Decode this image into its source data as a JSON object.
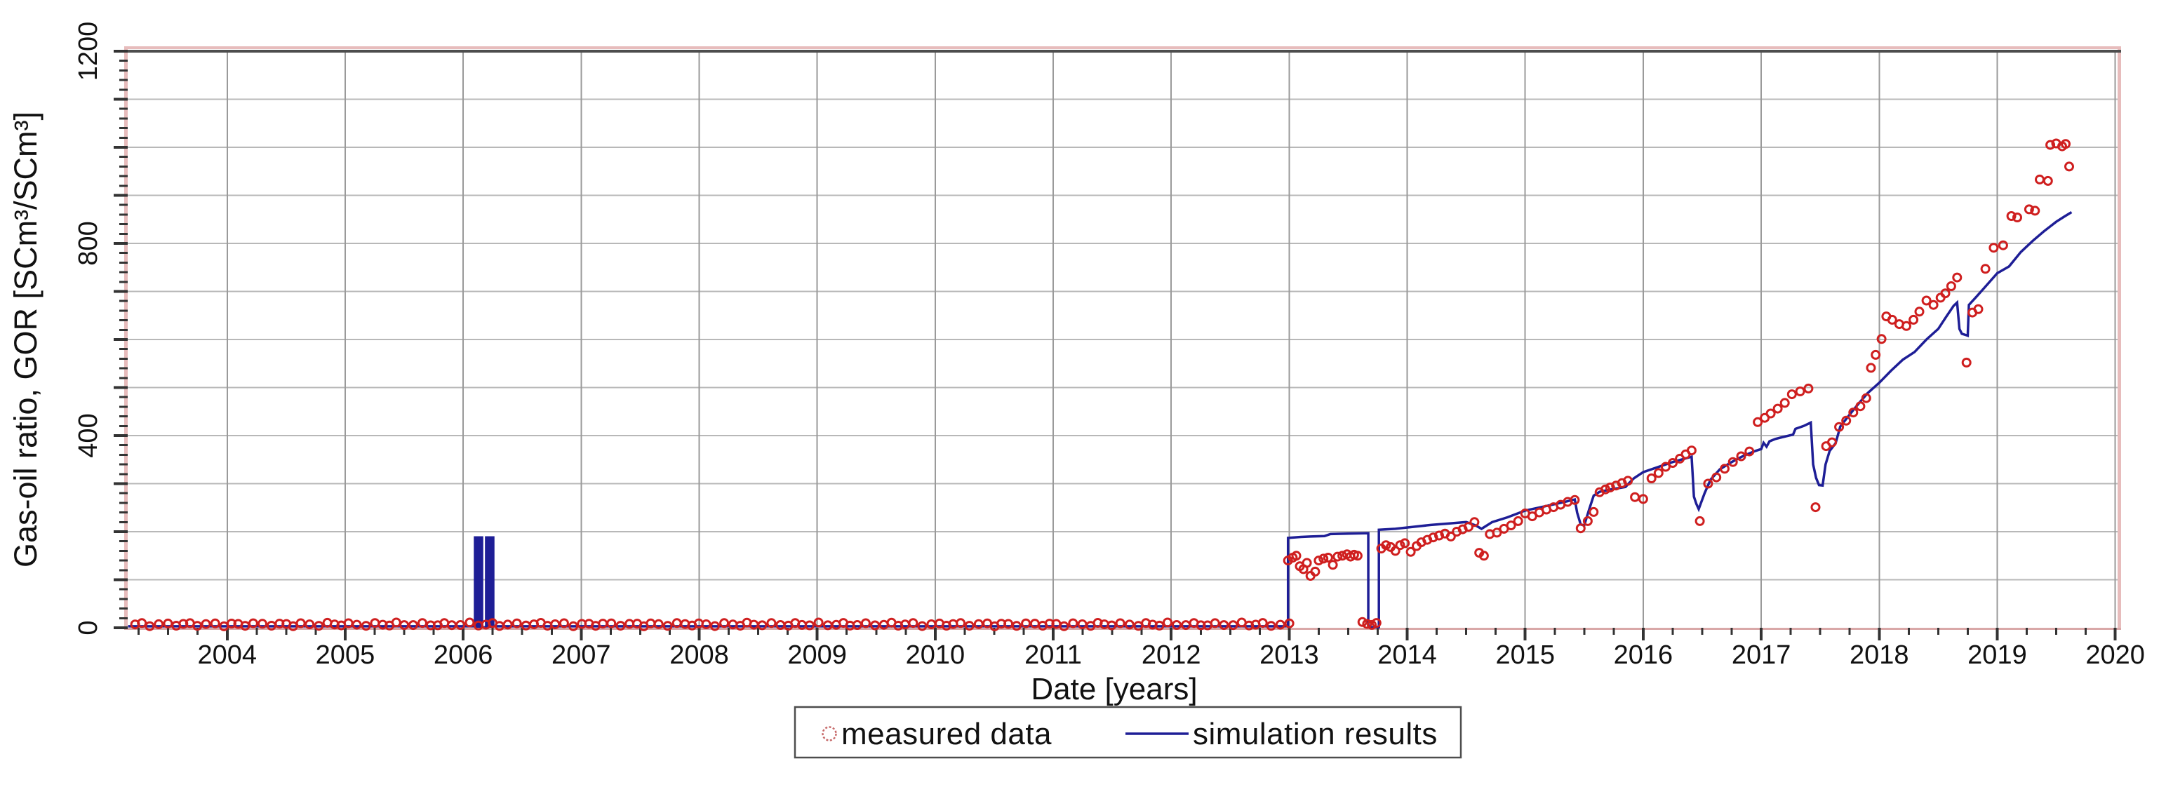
{
  "chart": {
    "xlabel": "Date [years]",
    "ylabel": "Gas-oil ratio, GOR [SCm³/SCm³]",
    "legend": {
      "items": [
        {
          "label": "measured data",
          "type": "ring-marker"
        },
        {
          "label": "simulation results",
          "type": "line"
        }
      ]
    },
    "colors": {
      "measured": "#cf1f1f",
      "simulation": "#1e1e96",
      "grid_h": "#b8b8b8",
      "grid_v": "#9a9a9a",
      "frame_pink": "#e7bcbc",
      "frame_dark": "#4d4d4d",
      "tick": "#333333",
      "legend_border": "#4d4d4d",
      "legend_marker": "#c76a6a"
    }
  },
  "chart_data": {
    "type": "scatter",
    "title": "",
    "xlabel": "Date [years]",
    "ylabel": "Gas-oil ratio, GOR [SCm³/SCm³]",
    "x_axis": {
      "min": 2003.157,
      "max": 2020.02,
      "major_tick": 1,
      "minor_tick": 0.25,
      "tick_years": [
        2004,
        2005,
        2006,
        2007,
        2008,
        2009,
        2010,
        2011,
        2012,
        2013,
        2014,
        2015,
        2016,
        2017,
        2018,
        2019,
        2020
      ],
      "grid": true
    },
    "y_axis": {
      "min": 0,
      "max": 1200,
      "gridline_step": 100,
      "major_tick": 100,
      "minor_tick": 20,
      "labeled_ticks": [
        0,
        400,
        800,
        1200
      ],
      "grid": true
    },
    "series": [
      {
        "name": "measured data",
        "type": "scatter",
        "marker": "ring",
        "color": "#cf1f1f",
        "zero_rate_band": {
          "x_start": 2003.22,
          "x_end": 2012.99,
          "points": 146,
          "gor_mean": 7,
          "gor_jitter": 4
        },
        "points": [
          [
            2012.99,
            140
          ],
          [
            2013.03,
            146
          ],
          [
            2013.06,
            150
          ],
          [
            2013.09,
            128
          ],
          [
            2013.12,
            122
          ],
          [
            2013.15,
            135
          ],
          [
            2013.18,
            108
          ],
          [
            2013.22,
            117
          ],
          [
            2013.25,
            140
          ],
          [
            2013.29,
            144
          ],
          [
            2013.33,
            146
          ],
          [
            2013.37,
            131
          ],
          [
            2013.41,
            148
          ],
          [
            2013.45,
            150
          ],
          [
            2013.49,
            153
          ],
          [
            2013.52,
            148
          ],
          [
            2013.55,
            152
          ],
          [
            2013.58,
            150
          ],
          [
            2013.62,
            12
          ],
          [
            2013.66,
            8
          ],
          [
            2013.7,
            6
          ],
          [
            2013.74,
            10
          ],
          [
            2013.78,
            165
          ],
          [
            2013.82,
            172
          ],
          [
            2013.86,
            168
          ],
          [
            2013.9,
            160
          ],
          [
            2013.94,
            172
          ],
          [
            2013.98,
            176
          ],
          [
            2014.03,
            158
          ],
          [
            2014.08,
            170
          ],
          [
            2014.12,
            178
          ],
          [
            2014.17,
            183
          ],
          [
            2014.22,
            188
          ],
          [
            2014.27,
            192
          ],
          [
            2014.32,
            196
          ],
          [
            2014.37,
            190
          ],
          [
            2014.42,
            200
          ],
          [
            2014.47,
            205
          ],
          [
            2014.52,
            210
          ],
          [
            2014.57,
            220
          ],
          [
            2014.61,
            156
          ],
          [
            2014.65,
            150
          ],
          [
            2014.7,
            195
          ],
          [
            2014.76,
            198
          ],
          [
            2014.82,
            206
          ],
          [
            2014.88,
            213
          ],
          [
            2014.94,
            222
          ],
          [
            2015.0,
            238
          ],
          [
            2015.06,
            232
          ],
          [
            2015.12,
            240
          ],
          [
            2015.18,
            246
          ],
          [
            2015.24,
            251
          ],
          [
            2015.3,
            256
          ],
          [
            2015.36,
            262
          ],
          [
            2015.42,
            266
          ],
          [
            2015.47,
            207
          ],
          [
            2015.53,
            222
          ],
          [
            2015.58,
            241
          ],
          [
            2015.63,
            282
          ],
          [
            2015.68,
            288
          ],
          [
            2015.72,
            292
          ],
          [
            2015.77,
            296
          ],
          [
            2015.82,
            301
          ],
          [
            2015.87,
            306
          ],
          [
            2015.93,
            272
          ],
          [
            2016.0,
            268
          ],
          [
            2016.07,
            311
          ],
          [
            2016.13,
            322
          ],
          [
            2016.19,
            335
          ],
          [
            2016.25,
            343
          ],
          [
            2016.31,
            352
          ],
          [
            2016.36,
            361
          ],
          [
            2016.41,
            369
          ],
          [
            2016.48,
            222
          ],
          [
            2016.55,
            300
          ],
          [
            2016.62,
            313
          ],
          [
            2016.69,
            331
          ],
          [
            2016.76,
            345
          ],
          [
            2016.83,
            357
          ],
          [
            2016.9,
            367
          ],
          [
            2016.97,
            428
          ],
          [
            2017.03,
            437
          ],
          [
            2017.08,
            446
          ],
          [
            2017.14,
            456
          ],
          [
            2017.2,
            468
          ],
          [
            2017.26,
            486
          ],
          [
            2017.33,
            492
          ],
          [
            2017.4,
            498
          ],
          [
            2017.46,
            251
          ],
          [
            2017.55,
            378
          ],
          [
            2017.6,
            386
          ],
          [
            2017.66,
            418
          ],
          [
            2017.72,
            431
          ],
          [
            2017.78,
            448
          ],
          [
            2017.84,
            461
          ],
          [
            2017.89,
            478
          ],
          [
            2017.93,
            541
          ],
          [
            2017.97,
            568
          ],
          [
            2018.02,
            601
          ],
          [
            2018.06,
            648
          ],
          [
            2018.11,
            641
          ],
          [
            2018.17,
            632
          ],
          [
            2018.23,
            628
          ],
          [
            2018.29,
            641
          ],
          [
            2018.34,
            658
          ],
          [
            2018.4,
            681
          ],
          [
            2018.46,
            672
          ],
          [
            2018.52,
            687
          ],
          [
            2018.56,
            696
          ],
          [
            2018.61,
            711
          ],
          [
            2018.66,
            729
          ],
          [
            2018.74,
            552
          ],
          [
            2018.79,
            656
          ],
          [
            2018.84,
            663
          ],
          [
            2018.9,
            747
          ],
          [
            2018.97,
            791
          ],
          [
            2019.05,
            796
          ],
          [
            2019.12,
            857
          ],
          [
            2019.17,
            854
          ],
          [
            2019.27,
            871
          ],
          [
            2019.32,
            868
          ],
          [
            2019.36,
            933
          ],
          [
            2019.43,
            930
          ],
          [
            2019.45,
            1005
          ],
          [
            2019.5,
            1008
          ],
          [
            2019.55,
            1002
          ],
          [
            2019.58,
            1007
          ],
          [
            2019.61,
            960
          ]
        ]
      },
      {
        "name": "simulation results",
        "type": "line",
        "color": "#1e1e96",
        "pulses": [
          {
            "x0": 2006.105,
            "x1": 2006.155,
            "value": 188
          },
          {
            "x0": 2006.2,
            "x1": 2006.25,
            "value": 188
          }
        ],
        "points": [
          [
            2003.16,
            3
          ],
          [
            2006.1,
            3
          ],
          [
            2006.1,
            188
          ],
          [
            2006.16,
            188
          ],
          [
            2006.16,
            1
          ],
          [
            2006.195,
            1
          ],
          [
            2006.195,
            188
          ],
          [
            2006.255,
            188
          ],
          [
            2006.255,
            3
          ],
          [
            2012.99,
            3
          ],
          [
            2012.99,
            187
          ],
          [
            2013.1,
            189
          ],
          [
            2013.18,
            190
          ],
          [
            2013.3,
            191
          ],
          [
            2013.35,
            195
          ],
          [
            2013.5,
            196
          ],
          [
            2013.67,
            197
          ],
          [
            2013.67,
            1
          ],
          [
            2013.76,
            1
          ],
          [
            2013.76,
            204
          ],
          [
            2013.9,
            206
          ],
          [
            2014.05,
            210
          ],
          [
            2014.2,
            214
          ],
          [
            2014.35,
            217
          ],
          [
            2014.5,
            220
          ],
          [
            2014.58,
            213
          ],
          [
            2014.63,
            206
          ],
          [
            2014.72,
            220
          ],
          [
            2014.85,
            230
          ],
          [
            2015.0,
            244
          ],
          [
            2015.15,
            252
          ],
          [
            2015.3,
            260
          ],
          [
            2015.42,
            267
          ],
          [
            2015.44,
            240
          ],
          [
            2015.47,
            215
          ],
          [
            2015.5,
            213
          ],
          [
            2015.54,
            245
          ],
          [
            2015.58,
            275
          ],
          [
            2015.63,
            283
          ],
          [
            2015.75,
            289
          ],
          [
            2015.85,
            293
          ],
          [
            2015.88,
            301
          ],
          [
            2015.92,
            311
          ],
          [
            2016.0,
            324
          ],
          [
            2016.12,
            334
          ],
          [
            2016.25,
            345
          ],
          [
            2016.35,
            352
          ],
          [
            2016.41,
            356
          ],
          [
            2016.43,
            273
          ],
          [
            2016.45,
            258
          ],
          [
            2016.47,
            247
          ],
          [
            2016.52,
            280
          ],
          [
            2016.57,
            308
          ],
          [
            2016.65,
            330
          ],
          [
            2016.75,
            345
          ],
          [
            2016.85,
            358
          ],
          [
            2016.95,
            368
          ],
          [
            2017.0,
            372
          ],
          [
            2017.02,
            385
          ],
          [
            2017.045,
            377
          ],
          [
            2017.07,
            388
          ],
          [
            2017.12,
            393
          ],
          [
            2017.2,
            398
          ],
          [
            2017.27,
            402
          ],
          [
            2017.29,
            414
          ],
          [
            2017.36,
            420
          ],
          [
            2017.42,
            427
          ],
          [
            2017.44,
            340
          ],
          [
            2017.465,
            312
          ],
          [
            2017.49,
            297
          ],
          [
            2017.52,
            296
          ],
          [
            2017.545,
            340
          ],
          [
            2017.58,
            368
          ],
          [
            2017.63,
            384
          ],
          [
            2017.67,
            419
          ],
          [
            2017.75,
            444
          ],
          [
            2017.82,
            465
          ],
          [
            2017.9,
            488
          ],
          [
            2018.0,
            510
          ],
          [
            2018.1,
            535
          ],
          [
            2018.2,
            558
          ],
          [
            2018.3,
            574
          ],
          [
            2018.4,
            600
          ],
          [
            2018.5,
            622
          ],
          [
            2018.57,
            648
          ],
          [
            2018.63,
            670
          ],
          [
            2018.66,
            677
          ],
          [
            2018.68,
            622
          ],
          [
            2018.7,
            612
          ],
          [
            2018.75,
            608
          ],
          [
            2018.76,
            672
          ],
          [
            2018.82,
            688
          ],
          [
            2018.9,
            710
          ],
          [
            2019.0,
            738
          ],
          [
            2019.1,
            752
          ],
          [
            2019.2,
            782
          ],
          [
            2019.3,
            805
          ],
          [
            2019.4,
            826
          ],
          [
            2019.5,
            845
          ],
          [
            2019.57,
            856
          ],
          [
            2019.63,
            865
          ]
        ]
      }
    ]
  }
}
